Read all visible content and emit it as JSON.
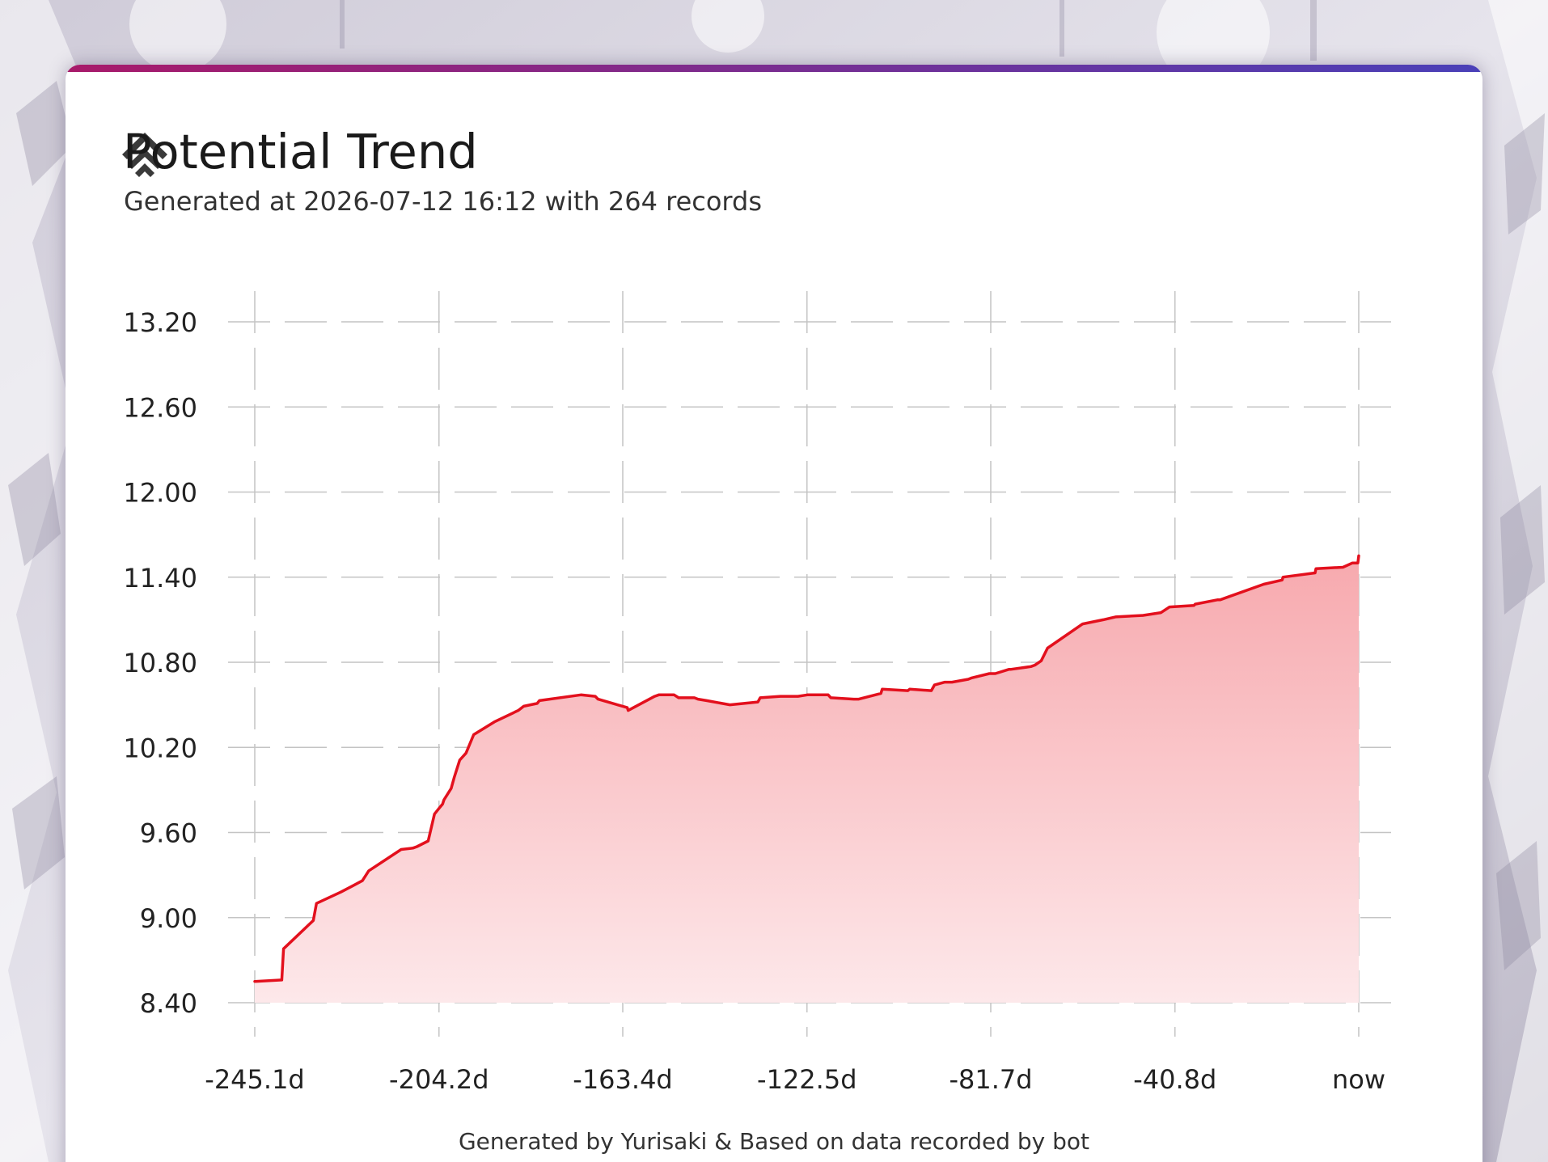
{
  "header": {
    "title": "Potential Trend",
    "subtitle": "Generated at 2026-07-12 16:12 with 264 records",
    "icon": "layered-chevrons-icon"
  },
  "footer": {
    "note": "Generated by Yurisaki & Based on data recorded by bot"
  },
  "colors": {
    "line": "#e3101d",
    "fill_top": "#f7a9ae",
    "fill_bottom": "#fde8ea",
    "accent_start": "#a81a6a",
    "accent_end": "#4a40b8",
    "grid": "#c4c4c4"
  },
  "chart_data": {
    "type": "area",
    "title": "Potential Trend",
    "subtitle": "Generated at 2026-07-12 16:12 with 264 records",
    "xlabel": "",
    "ylabel": "",
    "xlim": [
      -245.1,
      0
    ],
    "ylim": [
      8.4,
      13.2
    ],
    "y_ticks": [
      13.2,
      12.6,
      12.0,
      11.4,
      10.8,
      10.2,
      9.6,
      9.0,
      8.4
    ],
    "y_tick_labels": [
      "13.20",
      "12.60",
      "12.00",
      "11.40",
      "10.80",
      "10.20",
      "9.60",
      "9.00",
      "8.40"
    ],
    "x_ticks": [
      -245.1,
      -204.2,
      -163.4,
      -122.5,
      -81.7,
      -40.8,
      0
    ],
    "x_tick_labels": [
      "-245.1d",
      "-204.2d",
      "-163.4d",
      "-122.5d",
      "-81.7d",
      "-40.8d",
      "now"
    ],
    "grid": true,
    "legend": "none",
    "series": [
      {
        "x": [
          -245.1,
          -239.1,
          -238.7,
          -232.1,
          -231.4,
          -226.0,
          -223.0,
          -221.2,
          -219.8,
          -212.6,
          -210.0,
          -209.1,
          -206.6,
          -205.2,
          -204.2,
          -203.4,
          -203.1,
          -201.5,
          -200.8,
          -199.6,
          -198.2,
          -196.5,
          -191.9,
          -186.6,
          -185.4,
          -182.4,
          -181.9,
          -172.7,
          -169.5,
          -168.9,
          -162.4,
          -162.2,
          -156.3,
          -155.4,
          -154.0,
          -152.0,
          -151.0,
          -147.5,
          -146.7,
          -144.8,
          -139.6,
          -133.4,
          -132.9,
          -128.4,
          -124.5,
          -122.4,
          -117.8,
          -117.2,
          -112.1,
          -111.0,
          -106.1,
          -105.8,
          -100.1,
          -99.7,
          -94.9,
          -94.2,
          -91.9,
          -90.3,
          -86.7,
          -85.9,
          -82.0,
          -80.7,
          -77.7,
          -77.3,
          -72.8,
          -71.9,
          -70.5,
          -69.1,
          -61.3,
          -56.7,
          -54.0,
          -48.2,
          -48.0,
          -43.9,
          -42.0,
          -36.6,
          -36.3,
          -31.4,
          -30.8,
          -21.1,
          -17.0,
          -16.8,
          -9.7,
          -9.5,
          -3.5,
          -1.4,
          -0.3,
          -0.2,
          0
        ],
        "y": [
          8.55,
          8.56,
          8.78,
          8.98,
          9.1,
          9.18,
          9.23,
          9.26,
          9.33,
          9.48,
          9.49,
          9.5,
          9.54,
          9.73,
          9.77,
          9.8,
          9.83,
          9.91,
          9.99,
          10.11,
          10.16,
          10.29,
          10.38,
          10.46,
          10.49,
          10.51,
          10.53,
          10.57,
          10.56,
          10.54,
          10.48,
          10.46,
          10.56,
          10.57,
          10.57,
          10.57,
          10.55,
          10.55,
          10.54,
          10.53,
          10.5,
          10.52,
          10.55,
          10.56,
          10.56,
          10.57,
          10.57,
          10.55,
          10.54,
          10.54,
          10.58,
          10.61,
          10.6,
          10.61,
          10.6,
          10.64,
          10.66,
          10.66,
          10.68,
          10.69,
          10.72,
          10.72,
          10.75,
          10.75,
          10.77,
          10.78,
          10.81,
          10.9,
          11.07,
          11.1,
          11.12,
          11.13,
          11.13,
          11.15,
          11.19,
          11.2,
          11.21,
          11.24,
          11.24,
          11.35,
          11.38,
          11.4,
          11.43,
          11.46,
          11.47,
          11.5,
          11.5,
          11.5,
          11.55
        ]
      }
    ]
  }
}
